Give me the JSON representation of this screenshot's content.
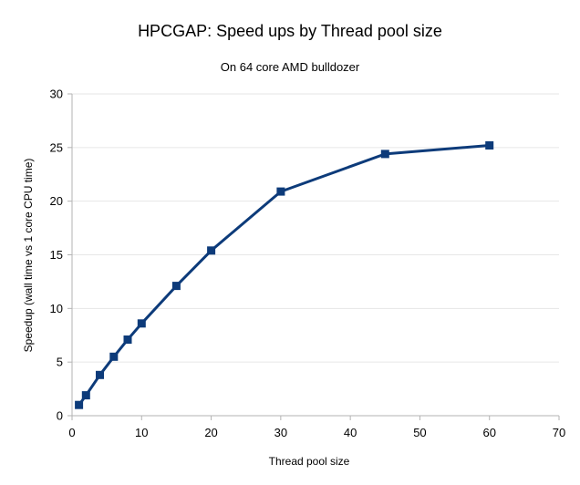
{
  "chart_data": {
    "type": "line",
    "title": "HPCGAP: Speed ups by Thread pool size",
    "subtitle": "On 64 core AMD bulldozer",
    "xlabel": "Thread pool size",
    "ylabel": "Speedup (wall time vs 1 core CPU time)",
    "xlim": [
      0,
      70
    ],
    "ylim": [
      0,
      30
    ],
    "xticks": [
      0,
      10,
      20,
      30,
      40,
      50,
      60,
      70
    ],
    "yticks": [
      0,
      5,
      10,
      15,
      20,
      25,
      30
    ],
    "grid": true,
    "legend": "none",
    "series": [
      {
        "color": "#0d3b7a",
        "marker": "square",
        "x": [
          1,
          2,
          4,
          6,
          8,
          10,
          15,
          20,
          30,
          45,
          60
        ],
        "y": [
          1.0,
          1.9,
          3.8,
          5.5,
          7.1,
          8.6,
          12.1,
          15.4,
          20.9,
          24.4,
          25.2
        ]
      }
    ]
  }
}
